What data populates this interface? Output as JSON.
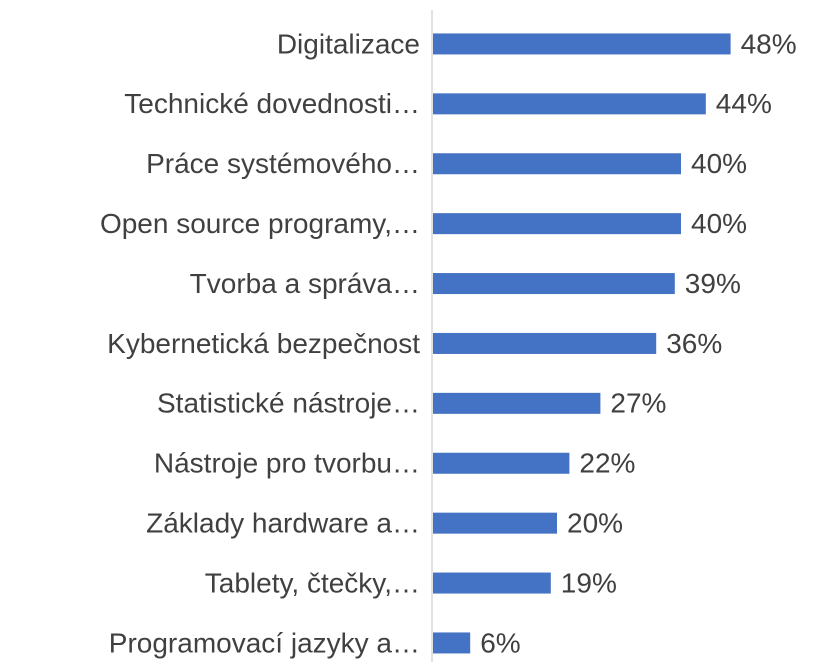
{
  "chart_data": {
    "type": "bar",
    "orientation": "horizontal",
    "categories": [
      "Digitalizace",
      "Technické dovednosti…",
      "Práce systémového…",
      "Open source programy,…",
      "Tvorba a správa…",
      "Kybernetická bezpečnost",
      "Statistické nástroje…",
      "Nástroje pro tvorbu…",
      "Základy hardware a…",
      "Tablety, čtečky,…",
      "Programovací jazyky a…"
    ],
    "values": [
      48,
      44,
      40,
      40,
      39,
      36,
      27,
      22,
      20,
      19,
      6
    ],
    "value_labels": [
      "48%",
      "44%",
      "40%",
      "40%",
      "39%",
      "36%",
      "27%",
      "22%",
      "20%",
      "19%",
      "6%"
    ],
    "color": "#4472c4"
  }
}
